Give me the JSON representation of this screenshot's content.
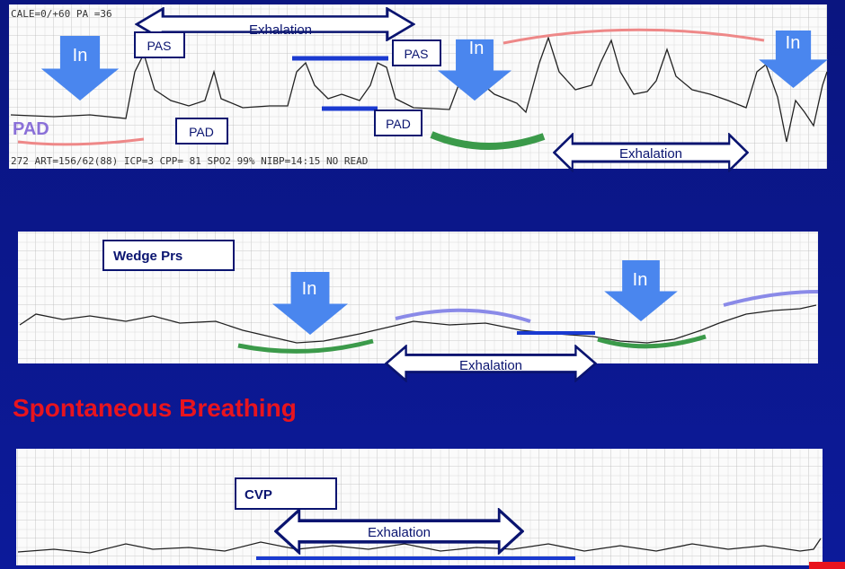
{
  "panel_top": {
    "header_text": "CALE=0/+60 PA =36",
    "footer_text": "272 ART=156/62(88) ICP=3 CPP= 81 SPO2 99% NIBP=14:15 NO READ",
    "handwritten_label": "PAD",
    "in_labels": [
      "In",
      "In",
      "In"
    ],
    "pas_labels": [
      "PAS",
      "PAS"
    ],
    "pad_labels": [
      "PAD",
      "PAD"
    ],
    "exhalation_labels": [
      "Exhalation",
      "Exhalation"
    ]
  },
  "panel_middle": {
    "title": "Wedge Prs",
    "in_labels": [
      "In",
      "In"
    ],
    "exhalation_label": "Exhalation"
  },
  "heading": "Spontaneous Breathing",
  "panel_bottom": {
    "title": "CVP",
    "exhalation_label": "Exhalation"
  }
}
